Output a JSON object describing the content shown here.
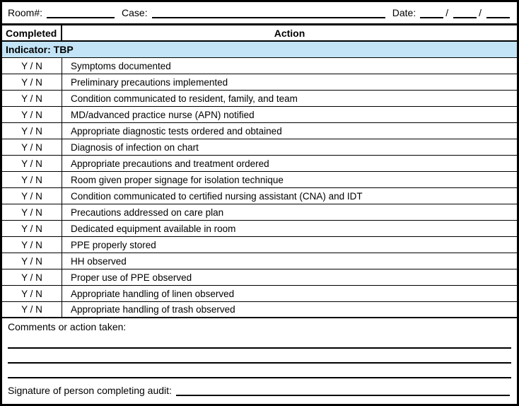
{
  "header_fields": {
    "room_label": "Room#:",
    "case_label": "Case:",
    "date_label": "Date:",
    "date_separator": "/"
  },
  "table": {
    "columns": [
      {
        "label": "Completed"
      },
      {
        "label": "Action"
      }
    ],
    "indicator_label": "Indicator: TBP",
    "completed_value": "Y / N",
    "rows": [
      "Symptoms documented",
      "Preliminary precautions implemented",
      "Condition communicated to resident, family, and team",
      "MD/advanced practice nurse (APN) notified",
      "Appropriate diagnostic tests ordered and obtained",
      "Diagnosis of infection on chart",
      "Appropriate precautions and treatment ordered",
      "Room given proper signage for isolation technique",
      "Condition communicated to certified nursing assistant (CNA) and IDT",
      "Precautions addressed on care plan",
      "Dedicated equipment available in room",
      "PPE properly stored",
      "HH observed",
      "Proper use of PPE observed",
      "Appropriate handling of linen observed",
      "Appropriate handling of trash observed"
    ]
  },
  "footer": {
    "comments_label": "Comments or action taken:",
    "comment_line_count": 3,
    "signature_label": "Signature of person completing audit:"
  },
  "colors": {
    "indicator_bg": "#C2E4F6",
    "border": "#000000"
  }
}
